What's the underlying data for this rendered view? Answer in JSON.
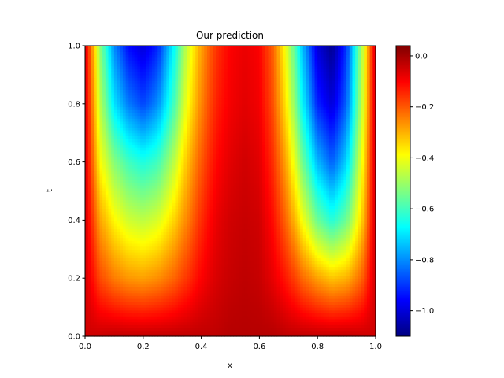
{
  "chart_data": {
    "type": "heatmap",
    "title": "Our prediction",
    "xlabel": "x",
    "ylabel": "t",
    "xlim": [
      0.0,
      1.0
    ],
    "ylim": [
      0.0,
      1.0
    ],
    "x_ticks": [
      "0.0",
      "0.2",
      "0.4",
      "0.6",
      "0.8",
      "1.0"
    ],
    "y_ticks": [
      "0.0",
      "0.2",
      "0.4",
      "0.6",
      "0.8",
      "1.0"
    ],
    "colorbar": {
      "colormap": "jet",
      "vmin": -1.1,
      "vmax": 0.04,
      "ticks": [
        "0.0",
        "−0.2",
        "−0.4",
        "−0.6",
        "−0.8",
        "−1.0"
      ],
      "tick_values": [
        0.0,
        -0.2,
        -0.4,
        -0.6,
        -0.8,
        -1.0
      ]
    },
    "grid": false,
    "field": {
      "x_samples": [
        0.0,
        0.05,
        0.1,
        0.15,
        0.2,
        0.25,
        0.3,
        0.35,
        0.4,
        0.45,
        0.5,
        0.55,
        0.6,
        0.65,
        0.7,
        0.75,
        0.8,
        0.85,
        0.9,
        0.95,
        1.0
      ],
      "t_samples": [
        0.0,
        0.2,
        0.4,
        0.6,
        0.8,
        1.0
      ],
      "values": [
        [
          -0.05,
          -0.04,
          -0.03,
          -0.03,
          -0.03,
          -0.03,
          -0.03,
          -0.03,
          -0.03,
          -0.03,
          -0.02,
          -0.02,
          -0.02,
          -0.02,
          -0.03,
          -0.03,
          -0.03,
          -0.03,
          -0.03,
          -0.04,
          -0.05
        ],
        [
          -0.05,
          -0.18,
          -0.24,
          -0.27,
          -0.28,
          -0.26,
          -0.22,
          -0.16,
          -0.1,
          -0.06,
          -0.04,
          -0.03,
          -0.04,
          -0.08,
          -0.14,
          -0.22,
          -0.28,
          -0.32,
          -0.3,
          -0.22,
          -0.05
        ],
        [
          -0.05,
          -0.28,
          -0.38,
          -0.44,
          -0.46,
          -0.43,
          -0.35,
          -0.25,
          -0.15,
          -0.08,
          -0.05,
          -0.04,
          -0.05,
          -0.12,
          -0.24,
          -0.4,
          -0.55,
          -0.63,
          -0.55,
          -0.35,
          -0.05
        ],
        [
          -0.05,
          -0.38,
          -0.52,
          -0.6,
          -0.64,
          -0.6,
          -0.48,
          -0.32,
          -0.2,
          -0.11,
          -0.07,
          -0.05,
          -0.07,
          -0.16,
          -0.32,
          -0.55,
          -0.75,
          -0.85,
          -0.72,
          -0.42,
          -0.05
        ],
        [
          -0.05,
          -0.45,
          -0.7,
          -0.82,
          -0.88,
          -0.8,
          -0.62,
          -0.4,
          -0.25,
          -0.14,
          -0.09,
          -0.07,
          -0.09,
          -0.2,
          -0.4,
          -0.68,
          -0.92,
          -1.0,
          -0.85,
          -0.48,
          -0.05
        ],
        [
          -0.05,
          -0.5,
          -0.8,
          -0.95,
          -1.0,
          -0.92,
          -0.7,
          -0.45,
          -0.28,
          -0.16,
          -0.1,
          -0.08,
          -0.1,
          -0.22,
          -0.45,
          -0.75,
          -1.0,
          -1.08,
          -0.9,
          -0.5,
          -0.05
        ]
      ]
    }
  }
}
